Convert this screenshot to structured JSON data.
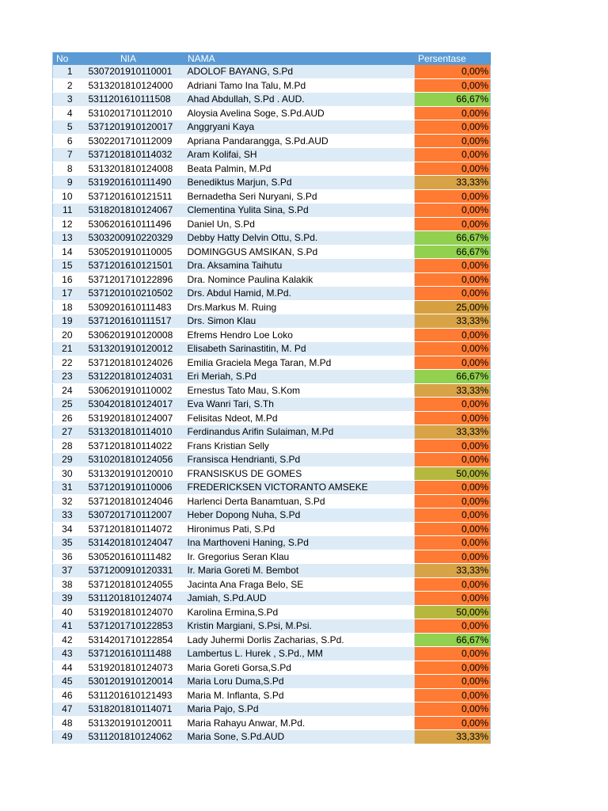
{
  "headers": {
    "no": "No",
    "nia": "NIA",
    "nama": "NAMA",
    "persentase": "Persentase"
  },
  "colors": {
    "header_bg": "#5b9bd5",
    "band_light": "#ddebf7",
    "pct_0": "#ff7a33",
    "pct_25": "#d6a040",
    "pct_33": "#d8a347",
    "pct_50": "#b5b83d",
    "pct_67": "#92d050"
  },
  "rows": [
    {
      "no": "1",
      "nia": "5307201910110001",
      "nama": "ADOLOF BAYANG, S.Pd",
      "pct": "0,00%",
      "value": 0
    },
    {
      "no": "2",
      "nia": "5313201810124000",
      "nama": "Adriani Tamo Ina Talu, M.Pd",
      "pct": "0,00%",
      "value": 0
    },
    {
      "no": "3",
      "nia": "5311201610111508",
      "nama": "Ahad Abdullah, S.Pd . AUD.",
      "pct": "66,67%",
      "value": 66.67
    },
    {
      "no": "4",
      "nia": "5310201710112010",
      "nama": "Aloysia Avelina Soge, S.Pd.AUD",
      "pct": "0,00%",
      "value": 0
    },
    {
      "no": "5",
      "nia": "5371201910120017",
      "nama": "Anggryani Kaya",
      "pct": "0,00%",
      "value": 0
    },
    {
      "no": "6",
      "nia": "5302201710112009",
      "nama": "Apriana Pandarangga, S.Pd.AUD",
      "pct": "0,00%",
      "value": 0
    },
    {
      "no": "7",
      "nia": "5371201810114032",
      "nama": "Aram Kolifai, SH",
      "pct": "0,00%",
      "value": 0
    },
    {
      "no": "8",
      "nia": "5313201810124008",
      "nama": "Beata Palmin, M.Pd",
      "pct": "0,00%",
      "value": 0
    },
    {
      "no": "9",
      "nia": "5319201610111490",
      "nama": "Benediktus Marjun, S.Pd",
      "pct": "33,33%",
      "value": 33.33
    },
    {
      "no": "10",
      "nia": "5371201610121511",
      "nama": "Bernadetha Seri Nuryani, S.Pd",
      "pct": "0,00%",
      "value": 0
    },
    {
      "no": "11",
      "nia": "5318201810124067",
      "nama": "Clementina Yulita Sina, S.Pd",
      "pct": "0,00%",
      "value": 0
    },
    {
      "no": "12",
      "nia": "5306201610111496",
      "nama": "Daniel Un, S.Pd",
      "pct": "0,00%",
      "value": 0
    },
    {
      "no": "13",
      "nia": "5303200910220329",
      "nama": "Debby Hatty Delvin Ottu, S.Pd.",
      "pct": "66,67%",
      "value": 66.67
    },
    {
      "no": "14",
      "nia": "5305201910110005",
      "nama": "DOMINGGUS AMSIKAN, S.Pd",
      "pct": "66,67%",
      "value": 66.67
    },
    {
      "no": "15",
      "nia": "5371201610121501",
      "nama": "Dra. Aksamina Taihutu",
      "pct": "0,00%",
      "value": 0
    },
    {
      "no": "16",
      "nia": "5371201710122896",
      "nama": "Dra. Nomince Paulina Kalakik",
      "pct": "0,00%",
      "value": 0
    },
    {
      "no": "17",
      "nia": "5371201010210502",
      "nama": "Drs. Abdul Hamid, M.Pd.",
      "pct": "0,00%",
      "value": 0
    },
    {
      "no": "18",
      "nia": "5309201610111483",
      "nama": "Drs.Markus M. Ruing",
      "pct": "25,00%",
      "value": 25
    },
    {
      "no": "19",
      "nia": "5371201610111517",
      "nama": "Drs. Simon Klau",
      "pct": "33,33%",
      "value": 33.33
    },
    {
      "no": "20",
      "nia": "5306201910120008",
      "nama": "Efrems Hendro Loe Loko",
      "pct": "0,00%",
      "value": 0
    },
    {
      "no": "21",
      "nia": "5313201910120012",
      "nama": "Elisabeth Sarinastitin, M. Pd",
      "pct": "0,00%",
      "value": 0
    },
    {
      "no": "22",
      "nia": "5371201810124026",
      "nama": "Emilia Graciela Mega Taran, M.Pd",
      "pct": "0,00%",
      "value": 0
    },
    {
      "no": "23",
      "nia": "5312201810124031",
      "nama": "Eri Meriah, S.Pd",
      "pct": "66,67%",
      "value": 66.67
    },
    {
      "no": "24",
      "nia": "5306201910110002",
      "nama": "Ernestus Tato Mau, S.Kom",
      "pct": "33,33%",
      "value": 33.33
    },
    {
      "no": "25",
      "nia": "5304201810124017",
      "nama": "Eva Wanri Tari, S.Th",
      "pct": "0,00%",
      "value": 0
    },
    {
      "no": "26",
      "nia": "5319201810124007",
      "nama": "Felisitas Ndeot, M.Pd",
      "pct": "0,00%",
      "value": 0
    },
    {
      "no": "27",
      "nia": "5313201810114010",
      "nama": "Ferdinandus Arifin Sulaiman, M.Pd",
      "pct": "33,33%",
      "value": 33.33
    },
    {
      "no": "28",
      "nia": "5371201810114022",
      "nama": "Frans Kristian Selly",
      "pct": "0,00%",
      "value": 0
    },
    {
      "no": "29",
      "nia": "5310201810124056",
      "nama": "Fransisca Hendrianti, S.Pd",
      "pct": "0,00%",
      "value": 0
    },
    {
      "no": "30",
      "nia": "5313201910120010",
      "nama": "FRANSISKUS DE GOMES",
      "pct": "50,00%",
      "value": 50
    },
    {
      "no": "31",
      "nia": "5371201910110006",
      "nama": "FREDERICKSEN VICTORANTO AMSEKE",
      "pct": "0,00%",
      "value": 0
    },
    {
      "no": "32",
      "nia": "5371201810124046",
      "nama": "Harlenci Derta Banamtuan, S.Pd",
      "pct": "0,00%",
      "value": 0
    },
    {
      "no": "33",
      "nia": "5307201710112007",
      "nama": "Heber Dopong Nuha, S.Pd",
      "pct": "0,00%",
      "value": 0
    },
    {
      "no": "34",
      "nia": "5371201810114072",
      "nama": "Hironimus Pati, S.Pd",
      "pct": "0,00%",
      "value": 0
    },
    {
      "no": "35",
      "nia": "5314201810124047",
      "nama": "Ina  Marthoveni Haning, S.Pd",
      "pct": "0,00%",
      "value": 0
    },
    {
      "no": "36",
      "nia": "5305201610111482",
      "nama": "Ir. Gregorius Seran Klau",
      "pct": "0,00%",
      "value": 0
    },
    {
      "no": "37",
      "nia": "5371200910120331",
      "nama": "Ir. Maria Goreti M. Bembot",
      "pct": "33,33%",
      "value": 33.33
    },
    {
      "no": "38",
      "nia": "5371201810124055",
      "nama": "Jacinta Ana Fraga Belo, SE",
      "pct": "0,00%",
      "value": 0
    },
    {
      "no": "39",
      "nia": "5311201810124074",
      "nama": "Jamiah, S.Pd.AUD",
      "pct": "0,00%",
      "value": 0
    },
    {
      "no": "40",
      "nia": "5319201810124070",
      "nama": "Karolina Ermina,S.Pd",
      "pct": "50,00%",
      "value": 50
    },
    {
      "no": "41",
      "nia": "5371201710122853",
      "nama": "Kristin Margiani, S.Psi, M.Psi.",
      "pct": "0,00%",
      "value": 0
    },
    {
      "no": "42",
      "nia": "5314201710122854",
      "nama": "Lady Juhermi Dorlis Zacharias, S.Pd.",
      "pct": "66,67%",
      "value": 66.67
    },
    {
      "no": "43",
      "nia": "5371201610111488",
      "nama": "Lambertus L. Hurek , S.Pd., MM",
      "pct": "0,00%",
      "value": 0
    },
    {
      "no": "44",
      "nia": "5319201810124073",
      "nama": "Maria Goreti Gorsa,S.Pd",
      "pct": "0,00%",
      "value": 0
    },
    {
      "no": "45",
      "nia": "5301201910120014",
      "nama": "Maria Loru Duma,S.Pd",
      "pct": "0,00%",
      "value": 0
    },
    {
      "no": "46",
      "nia": "5311201610121493",
      "nama": "Maria M. Inflanta, S.Pd",
      "pct": "0,00%",
      "value": 0
    },
    {
      "no": "47",
      "nia": "5318201810114071",
      "nama": "Maria Pajo, S.Pd",
      "pct": "0,00%",
      "value": 0
    },
    {
      "no": "48",
      "nia": "5313201910120011",
      "nama": "Maria Rahayu Anwar, M.Pd.",
      "pct": "0,00%",
      "value": 0
    },
    {
      "no": "49",
      "nia": "5311201810124062",
      "nama": "Maria Sone, S.Pd.AUD",
      "pct": "33,33%",
      "value": 33.33
    }
  ]
}
